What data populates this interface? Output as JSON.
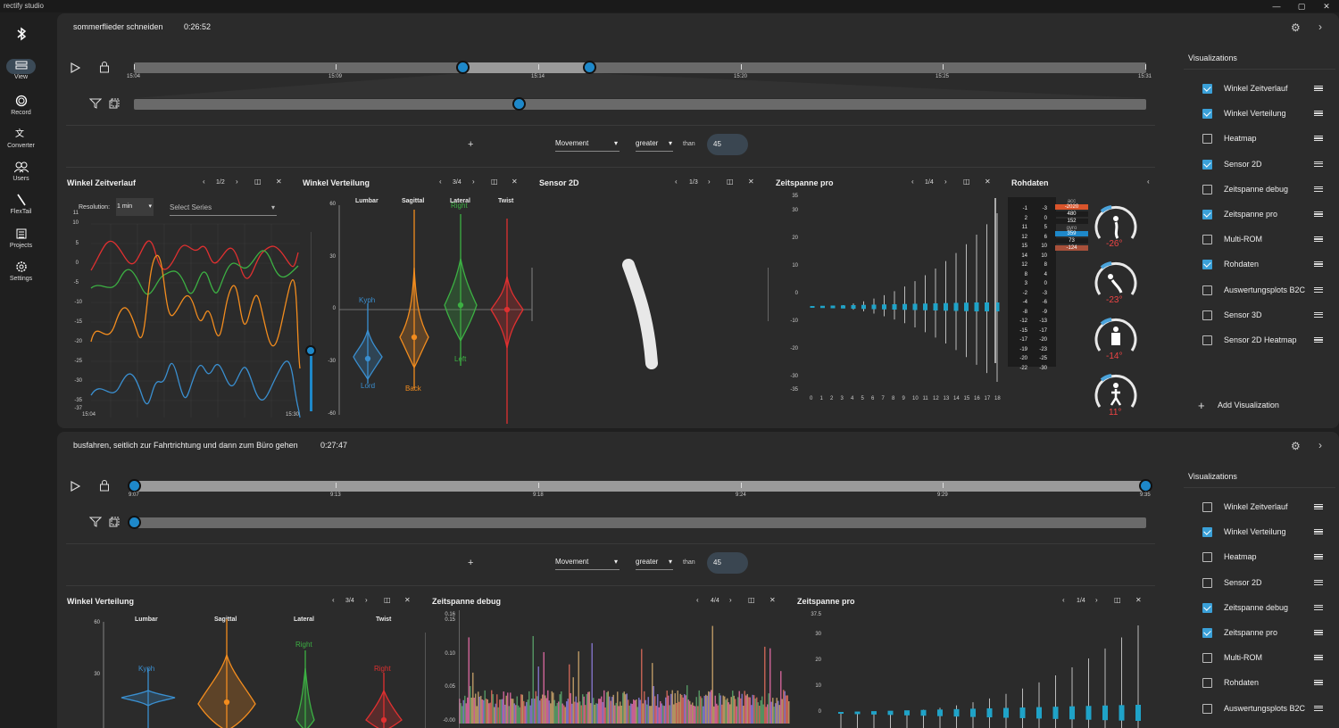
{
  "app": {
    "title": "rectify studio"
  },
  "nav": {
    "items": [
      {
        "label": "View"
      },
      {
        "label": "Record"
      },
      {
        "label": "Converter"
      },
      {
        "label": "Users"
      },
      {
        "label": "FlexTail"
      },
      {
        "label": "Projects"
      },
      {
        "label": "Settings"
      }
    ]
  },
  "session1": {
    "title": "sommerflieder schneiden",
    "duration": "0:26:52",
    "timeline_ticks": [
      "15:04",
      "15:09",
      "15:14",
      "15:20",
      "15:25",
      "15:31"
    ],
    "filter": {
      "add": "+",
      "metric": "Movement",
      "op": "greater",
      "than": "than",
      "value": "45"
    },
    "widgets": {
      "zeitverlauf": {
        "title": "Winkel Zeitverlauf",
        "page": "1/2",
        "resolution_label": "Resolution:",
        "resolution": "1 min",
        "series_placeholder": "Select Series",
        "y_ticks": [
          "10",
          "5",
          "0",
          "-5",
          "-10",
          "-15",
          "-20",
          "-25",
          "-30",
          "-35"
        ],
        "y_max": "11",
        "y_min": "-37",
        "x_start": "15:04",
        "x_end": "15:30"
      },
      "verteilung": {
        "title": "Winkel Verteilung",
        "page": "3/4",
        "cols": [
          "Lumbar",
          "Sagittal",
          "Lateral",
          "Twist"
        ],
        "y_ticks": [
          "60",
          "30",
          "0",
          "-30",
          "-60"
        ],
        "labels": {
          "kyph": "Kyph",
          "lord": "Lord",
          "back": "Back",
          "right": "Right",
          "left": "Left"
        }
      },
      "sensor2d": {
        "title": "Sensor 2D",
        "page": "1/3"
      },
      "zeitspanne": {
        "title": "Zeitspanne pro",
        "page": "1/4",
        "y_ticks": [
          "35",
          "30",
          "20",
          "10",
          "0",
          "-10",
          "-20",
          "-30",
          "-35"
        ],
        "x_ticks": [
          "0",
          "1",
          "2",
          "3",
          "4",
          "5",
          "6",
          "7",
          "8",
          "9",
          "10",
          "11",
          "12",
          "13",
          "14",
          "15",
          "16",
          "17",
          "18"
        ]
      },
      "rohdaten": {
        "title": "Rohdaten",
        "col1": [
          "-1",
          "2",
          "11",
          "12",
          "15",
          "14",
          "12",
          "8",
          "3",
          "-2",
          "-4",
          "-8",
          "-12",
          "-15",
          "-17",
          "-19",
          "-20",
          "-22"
        ],
        "col2": [
          "-3",
          "0",
          "5",
          "6",
          "10",
          "10",
          "8",
          "4",
          "0",
          "-3",
          "-6",
          "-9",
          "-13",
          "-17",
          "-20",
          "-23",
          "-25",
          "-30"
        ],
        "acc_label": "acc",
        "acc": "-2020",
        "v1": "480",
        "v2": "152",
        "gyro_label": "gyro",
        "g1": "359",
        "g2": "73",
        "g3": "-124",
        "angles": [
          "-26°",
          "-23°",
          "-14°",
          "11°"
        ]
      }
    },
    "visualizations": {
      "title": "Visualizations",
      "add": "Add Visualization",
      "items": [
        {
          "label": "Winkel Zeitverlauf",
          "checked": true
        },
        {
          "label": "Winkel Verteilung",
          "checked": true
        },
        {
          "label": "Heatmap",
          "checked": false
        },
        {
          "label": "Sensor 2D",
          "checked": true
        },
        {
          "label": "Zeitspanne debug",
          "checked": false
        },
        {
          "label": "Zeitspanne pro",
          "checked": true
        },
        {
          "label": "Multi-ROM",
          "checked": false
        },
        {
          "label": "Rohdaten",
          "checked": true
        },
        {
          "label": "Auswertungsplots B2C",
          "checked": false
        },
        {
          "label": "Sensor 3D",
          "checked": false
        },
        {
          "label": "Sensor 2D Heatmap",
          "checked": false
        }
      ]
    }
  },
  "session2": {
    "title": "busfahren, seitlich zur Fahrtrichtung und dann zum Büro gehen",
    "duration": "0:27:47",
    "timeline_ticks": [
      "9:07",
      "9:13",
      "9:18",
      "9:24",
      "9:29",
      "9:35"
    ],
    "filter": {
      "add": "+",
      "metric": "Movement",
      "op": "greater",
      "than": "than",
      "value": "45"
    },
    "widgets": {
      "verteilung": {
        "title": "Winkel Verteilung",
        "page": "3/4",
        "cols": [
          "Lumbar",
          "Sagittal",
          "Lateral",
          "Twist"
        ],
        "y_ticks": [
          "60",
          "30"
        ],
        "labels": {
          "kyph": "Kyph",
          "right": "Right",
          "right2": "Right"
        }
      },
      "debug": {
        "title": "Zeitspanne debug",
        "page": "4/4",
        "y_ticks": [
          "0.16",
          "0.15",
          "0.10",
          "0.05",
          "-0.00"
        ]
      },
      "zeitspanne": {
        "title": "Zeitspanne pro",
        "page": "1/4",
        "y_ticks": [
          "37.5",
          "30",
          "20",
          "10",
          "0"
        ]
      }
    },
    "visualizations": {
      "title": "Visualizations",
      "items": [
        {
          "label": "Winkel Zeitverlauf",
          "checked": false
        },
        {
          "label": "Winkel Verteilung",
          "checked": true
        },
        {
          "label": "Heatmap",
          "checked": false
        },
        {
          "label": "Sensor 2D",
          "checked": false
        },
        {
          "label": "Zeitspanne debug",
          "checked": true
        },
        {
          "label": "Zeitspanne pro",
          "checked": true
        },
        {
          "label": "Multi-ROM",
          "checked": false
        },
        {
          "label": "Rohdaten",
          "checked": false
        },
        {
          "label": "Auswertungsplots B2C",
          "checked": false
        }
      ]
    }
  },
  "colors": {
    "accent": "#1e88c9",
    "blue": "#3a8fd0",
    "orange": "#f28c1e",
    "green": "#3cb043",
    "red": "#e03030",
    "panel": "#2b2b2b",
    "highlight_red": "#d9542b"
  }
}
